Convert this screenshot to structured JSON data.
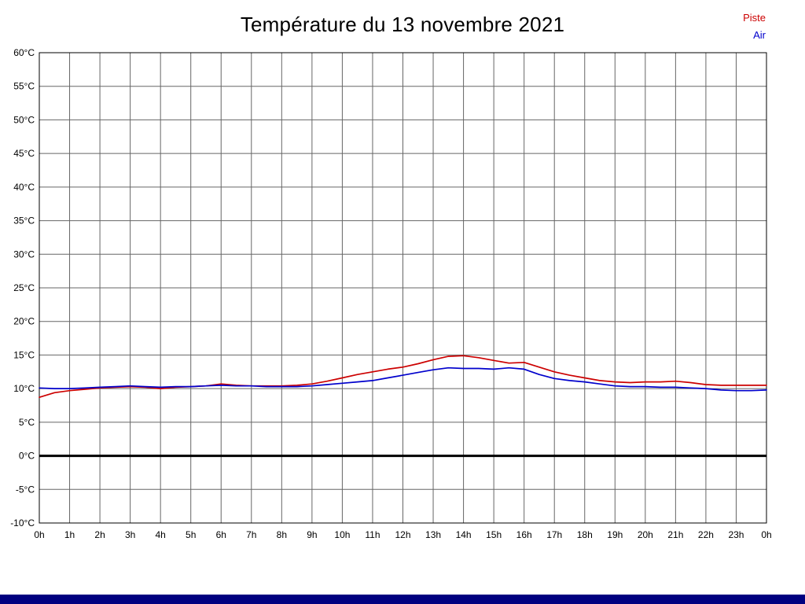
{
  "title": "Température du 13 novembre 2021",
  "legend": [
    {
      "label": "Piste",
      "color": "#cc0000"
    },
    {
      "label": "Air",
      "color": "#0000cc"
    }
  ],
  "footer_bar_color": "#000080",
  "chart_data": {
    "type": "line",
    "title": "Température du 13 novembre 2021",
    "xlabel": "",
    "ylabel": "",
    "xlim": [
      0,
      24
    ],
    "ylim": [
      -10,
      60
    ],
    "grid": true,
    "grid_color": "#666666",
    "border_color": "#000000",
    "zero_line": {
      "value": 0,
      "color": "#000000",
      "width": 3
    },
    "x_start": 0,
    "x_step": 0.5,
    "x_ticks": [
      0,
      1,
      2,
      3,
      4,
      5,
      6,
      7,
      8,
      9,
      10,
      11,
      12,
      13,
      14,
      15,
      16,
      17,
      18,
      19,
      20,
      21,
      22,
      23,
      24
    ],
    "x_tick_labels": [
      "0h",
      "1h",
      "2h",
      "3h",
      "4h",
      "5h",
      "6h",
      "7h",
      "8h",
      "9h",
      "10h",
      "11h",
      "12h",
      "13h",
      "14h",
      "15h",
      "16h",
      "17h",
      "18h",
      "19h",
      "20h",
      "21h",
      "22h",
      "23h",
      "0h"
    ],
    "y_ticks": [
      60,
      55,
      50,
      45,
      40,
      35,
      30,
      25,
      20,
      15,
      10,
      5,
      0,
      -5,
      -10
    ],
    "y_tick_labels": [
      "60°C",
      "55°C",
      "50°C",
      "45°C",
      "40°C",
      "35°C",
      "30°C",
      "25°C",
      "20°C",
      "15°C",
      "10°C",
      "5°C",
      "0°C",
      "-5°C",
      "-10°C"
    ],
    "legend_position": "top-right",
    "series": [
      {
        "name": "Piste",
        "color": "#cc0000",
        "values": [
          8.7,
          9.4,
          9.7,
          9.9,
          10.1,
          10.2,
          10.3,
          10.2,
          10.0,
          10.2,
          10.3,
          10.4,
          10.7,
          10.5,
          10.4,
          10.4,
          10.4,
          10.5,
          10.7,
          11.1,
          11.6,
          12.1,
          12.5,
          12.9,
          13.2,
          13.7,
          14.3,
          14.8,
          14.9,
          14.6,
          14.2,
          13.8,
          13.9,
          13.2,
          12.5,
          12.0,
          11.6,
          11.2,
          11.0,
          10.9,
          11.0,
          11.0,
          11.1,
          10.9,
          10.6,
          10.5,
          10.5,
          10.5,
          10.5
        ]
      },
      {
        "name": "Air",
        "color": "#0000cc",
        "values": [
          10.1,
          10.0,
          10.0,
          10.1,
          10.2,
          10.3,
          10.4,
          10.3,
          10.2,
          10.3,
          10.3,
          10.4,
          10.5,
          10.4,
          10.4,
          10.3,
          10.3,
          10.3,
          10.4,
          10.6,
          10.8,
          11.0,
          11.2,
          11.6,
          12.0,
          12.4,
          12.8,
          13.1,
          13.0,
          13.0,
          12.9,
          13.1,
          12.9,
          12.1,
          11.5,
          11.2,
          11.0,
          10.7,
          10.4,
          10.3,
          10.3,
          10.2,
          10.2,
          10.1,
          10.0,
          9.8,
          9.7,
          9.7,
          9.8
        ]
      }
    ]
  }
}
